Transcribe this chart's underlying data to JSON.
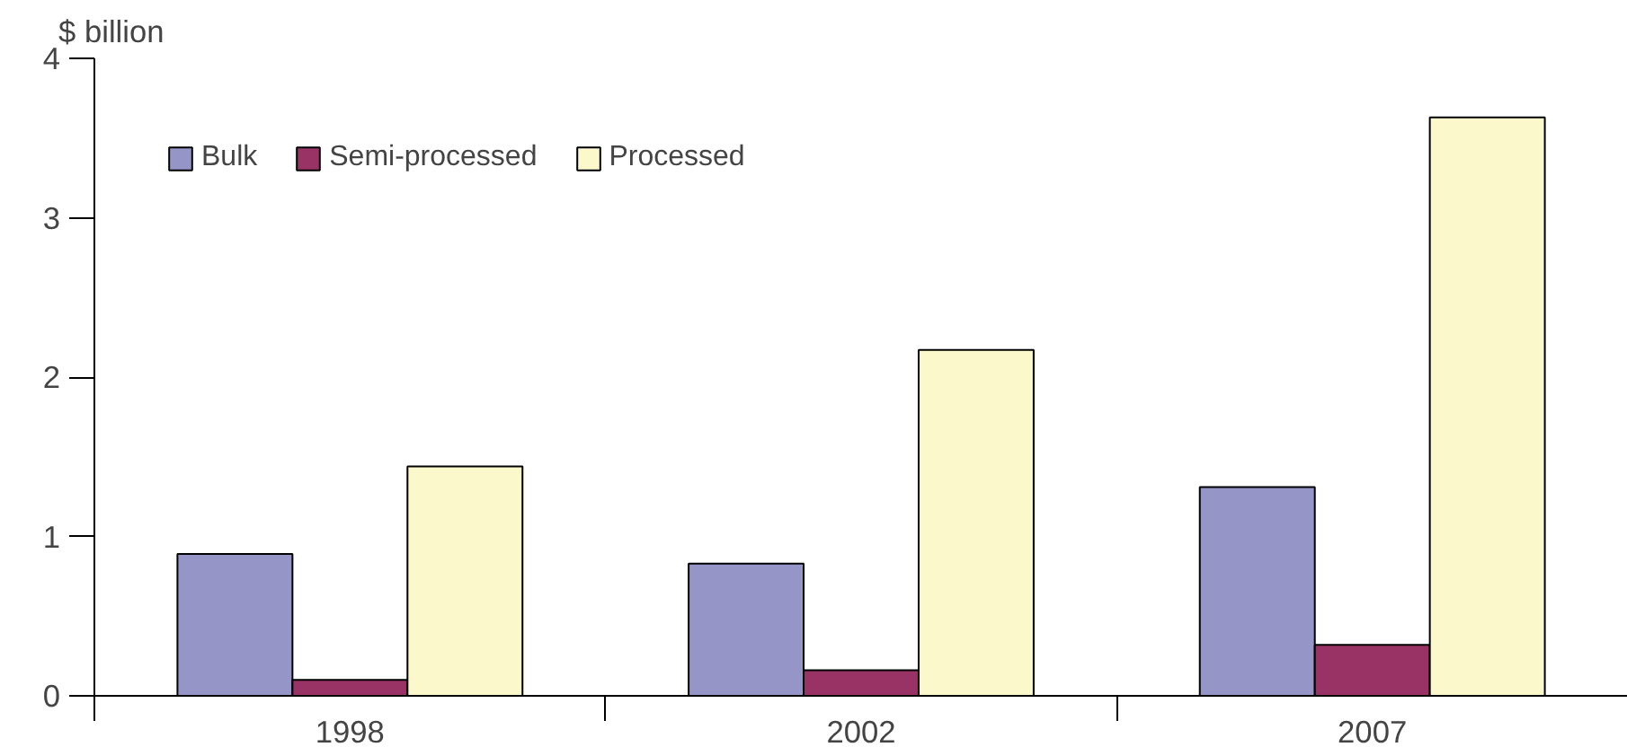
{
  "chart_data": {
    "type": "bar",
    "ylabel": "$ billion",
    "categories": [
      "1998",
      "2002",
      "2007"
    ],
    "series": [
      {
        "name": "Bulk",
        "color": "#9595c8",
        "values": [
          0.89,
          0.83,
          1.31
        ]
      },
      {
        "name": "Semi-processed",
        "color": "#993366",
        "values": [
          0.1,
          0.16,
          0.32
        ]
      },
      {
        "name": "Processed",
        "color": "#fbf8cc",
        "values": [
          1.44,
          2.17,
          3.63
        ]
      }
    ],
    "ylim": [
      0,
      4
    ],
    "yticks": [
      0,
      1,
      2,
      3,
      4
    ],
    "grid": false,
    "legend": "top left"
  }
}
